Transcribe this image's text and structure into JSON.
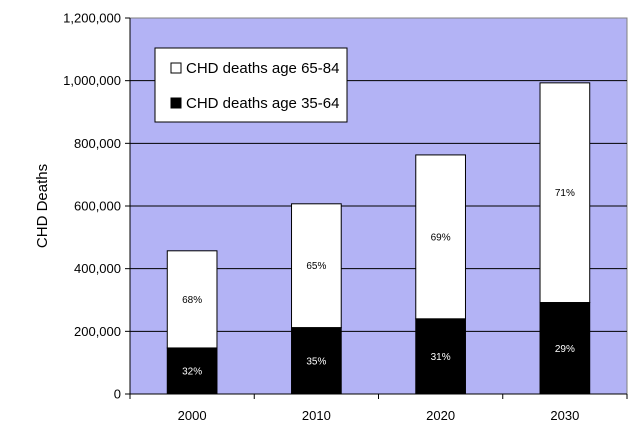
{
  "chart_data": {
    "type": "bar",
    "stacked": true,
    "title": "",
    "xlabel": "",
    "ylabel": "CHD Deaths",
    "ylim": [
      0,
      1200000
    ],
    "y_ticks": [
      0,
      200000,
      400000,
      600000,
      800000,
      1000000,
      1200000
    ],
    "y_tick_labels": [
      "0",
      "200,000",
      "400,000",
      "600,000",
      "800,000",
      "1,000,000",
      "1,200,000"
    ],
    "categories": [
      "2000",
      "2010",
      "2020",
      "2030"
    ],
    "series": [
      {
        "name": "CHD deaths age 35-64",
        "values": [
          147000,
          212000,
          240000,
          292000
        ],
        "color": "#000000",
        "label_color": "#ffffff",
        "labels": [
          "32%",
          "35%",
          "31%",
          "29%"
        ]
      },
      {
        "name": "CHD deaths age 65-84",
        "values": [
          310000,
          395000,
          523000,
          701000
        ],
        "color": "#ffffff",
        "label_color": "#000000",
        "labels": [
          "68%",
          "65%",
          "69%",
          "71%"
        ]
      }
    ],
    "legend": {
      "placement": "top-left",
      "order": [
        "CHD deaths age 65-84",
        "CHD deaths age 35-64"
      ]
    },
    "plot_background": "#b3b3f5",
    "grid": true
  }
}
